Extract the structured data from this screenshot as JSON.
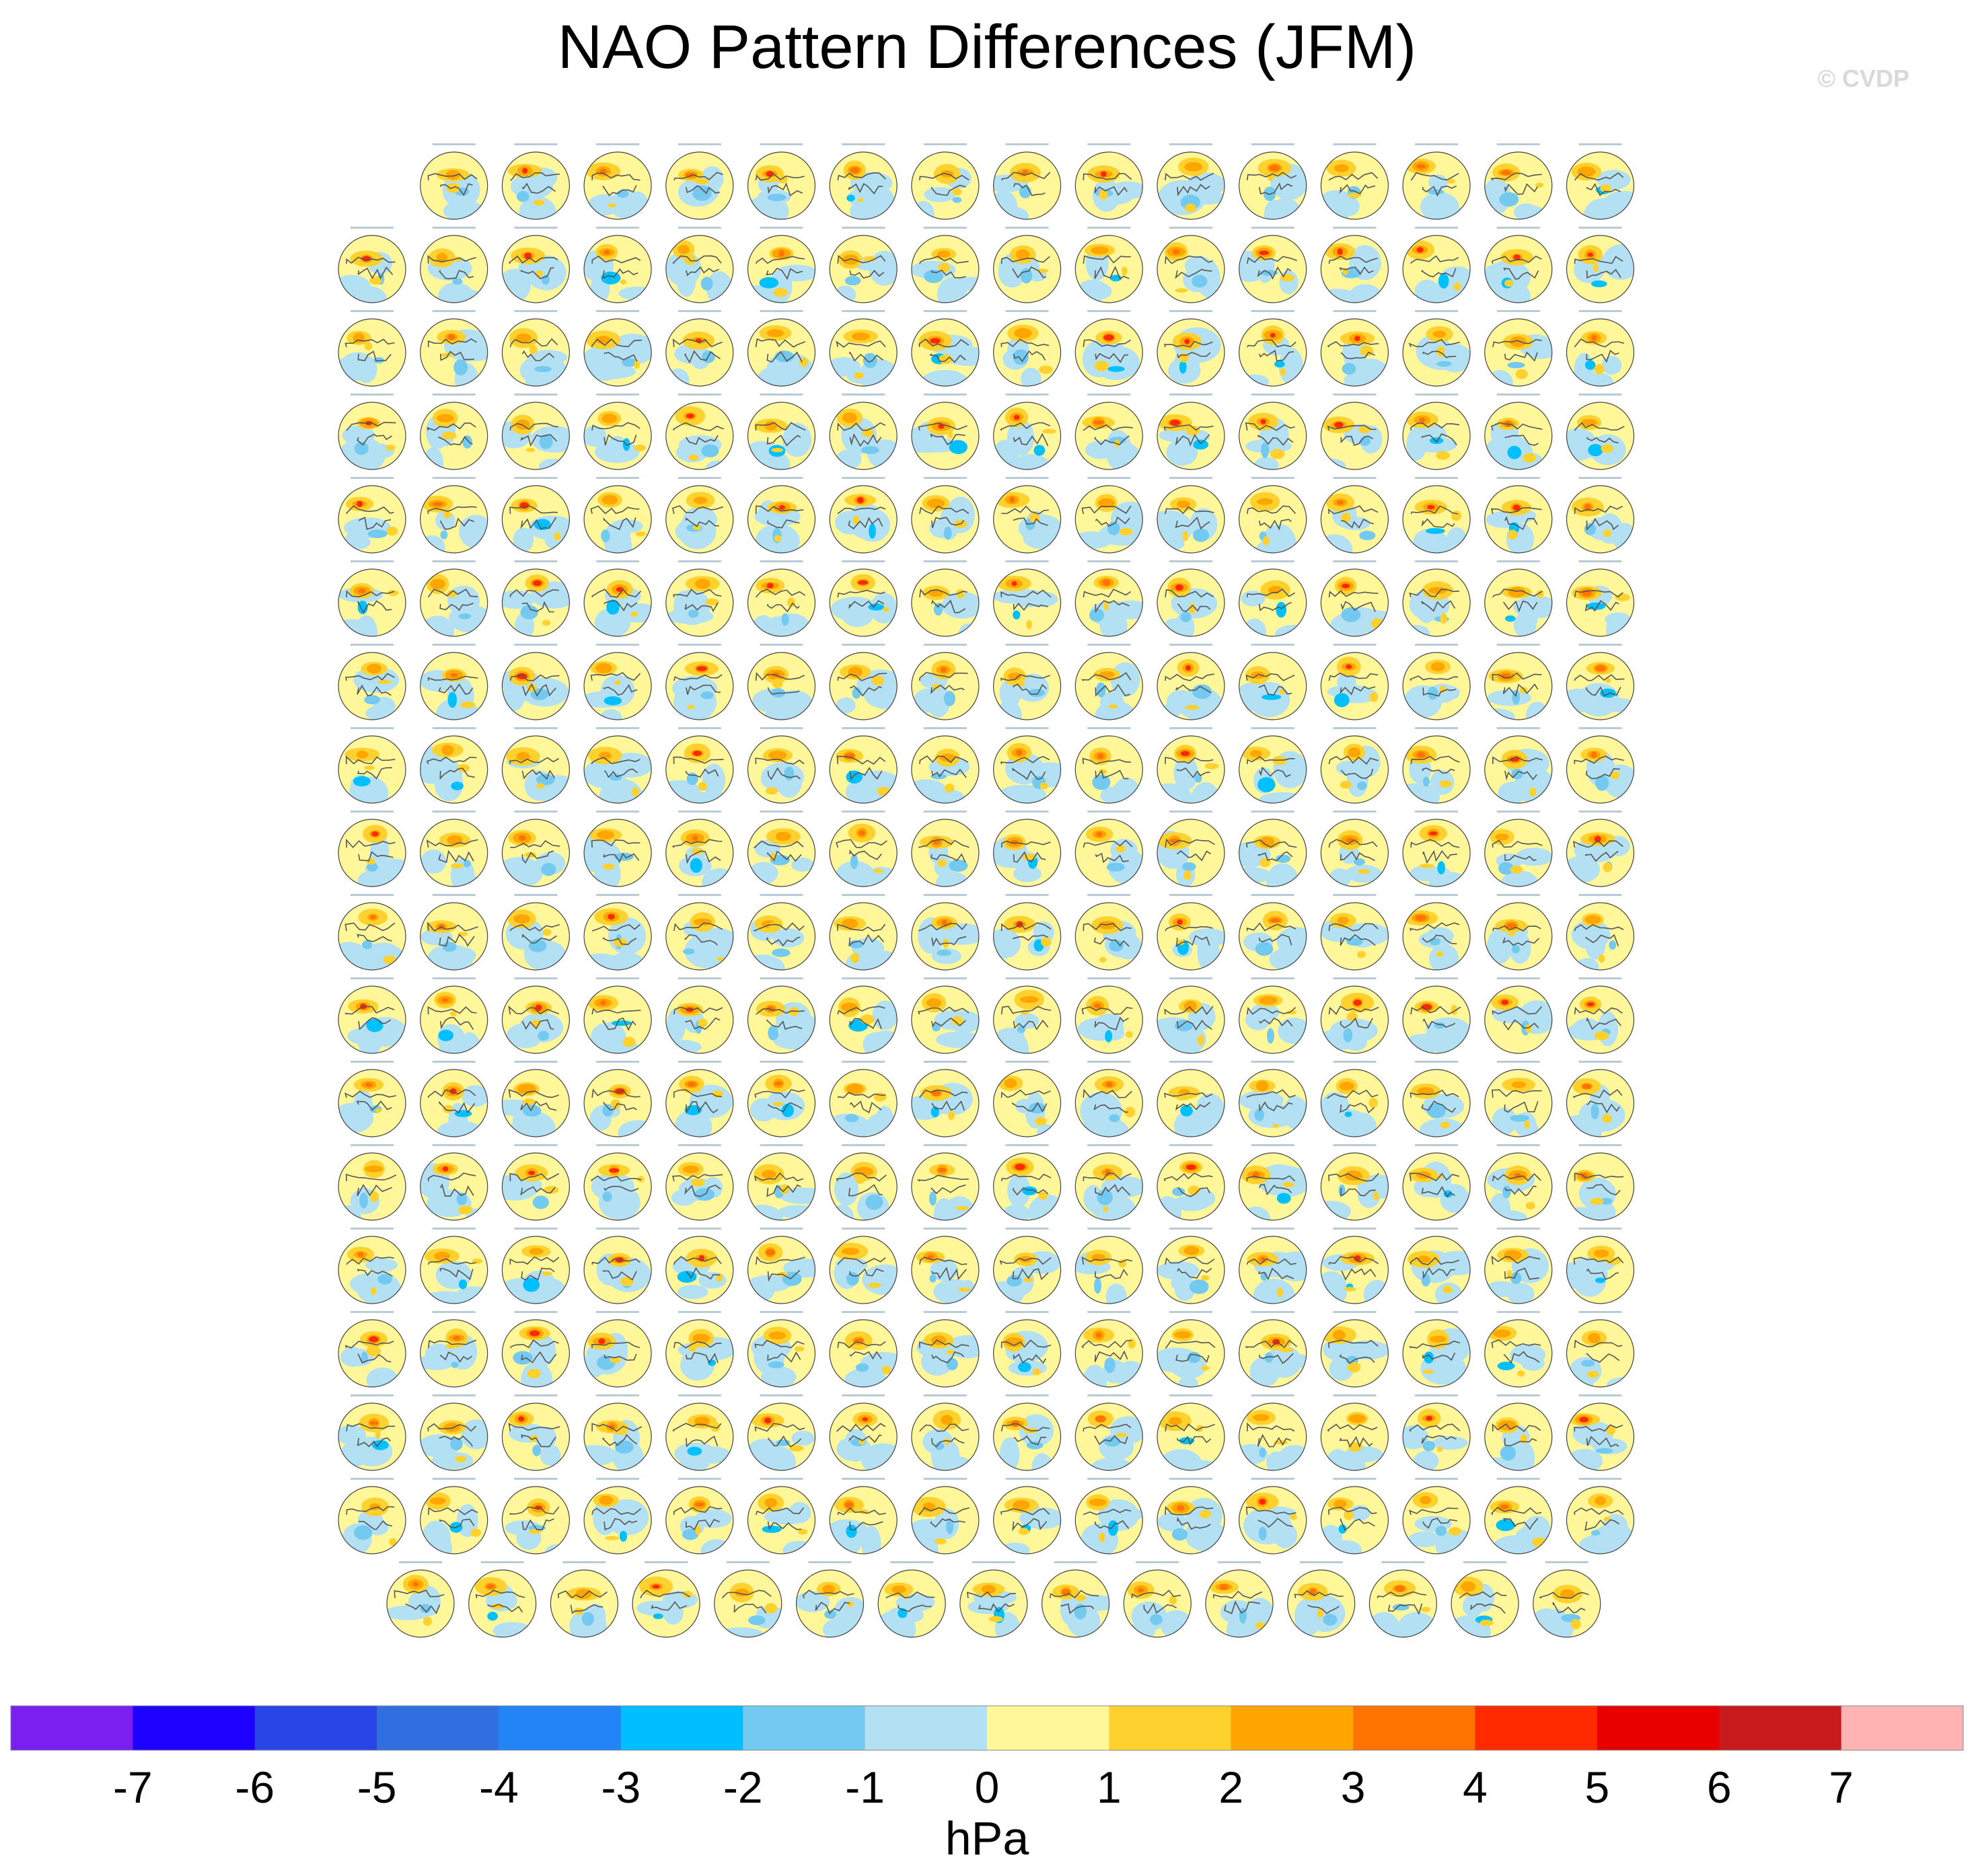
{
  "title": "NAO Pattern Differences (JFM)",
  "watermark": "© CVDP",
  "chart_data": {
    "type": "heatmap",
    "title": "NAO Pattern Differences (JFM)",
    "description_layout": "grid of polar-stereographic Northern Hemisphere SLP difference maps",
    "panel_rows": [
      15,
      16,
      16,
      16,
      16,
      16,
      16,
      16,
      16,
      16,
      16,
      16,
      16,
      16,
      16,
      16,
      16,
      15
    ],
    "total_panels": 286,
    "colorbar": {
      "units": "hPa",
      "levels": [
        -7,
        -6,
        -5,
        -4,
        -3,
        -2,
        -1,
        0,
        1,
        2,
        3,
        4,
        5,
        6,
        7
      ],
      "tick_labels": [
        "-7",
        "-6",
        "-5",
        "-4",
        "-3",
        "-2",
        "-1",
        "0",
        "1",
        "2",
        "3",
        "4",
        "5",
        "6",
        "7"
      ],
      "colors": [
        "#7a1ff0",
        "#1e00ff",
        "#2a45e6",
        "#2f6fe0",
        "#2385f5",
        "#00bfff",
        "#74c9f0",
        "#b3e0f2",
        "#fff79a",
        "#ffd12e",
        "#ffa500",
        "#ff7300",
        "#ff2a00",
        "#e60000",
        "#c81a1a",
        "#ffb3b3"
      ]
    }
  }
}
